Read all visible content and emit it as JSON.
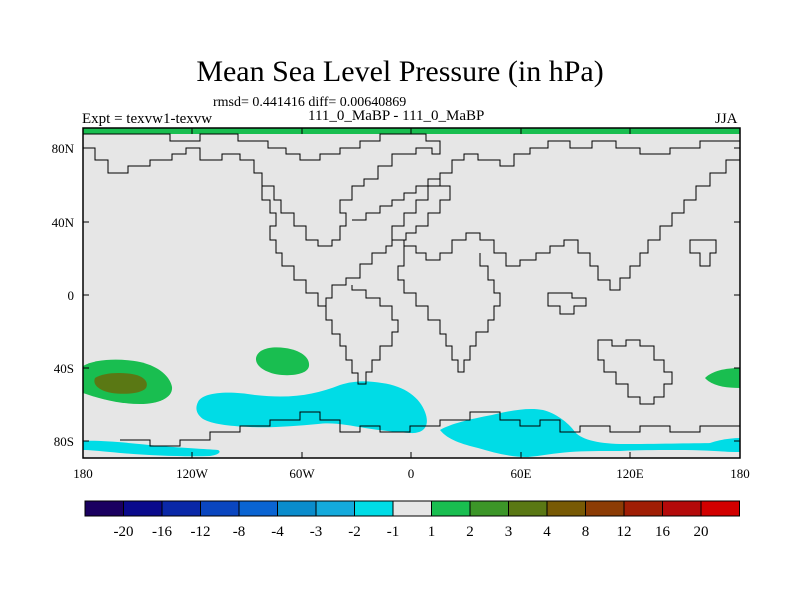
{
  "title": "Mean Sea Level Pressure (in hPa)",
  "stats": "rmsd= 0.441416 diff= 0.00640869",
  "left_label": "Expt = texvw1-texvw",
  "center_label": "111_0_MaBP - 111_0_MaBP",
  "right_label": "JJA",
  "lat_ticks": [
    "80N",
    "40N",
    "0",
    "40S",
    "80S"
  ],
  "lon_ticks": [
    "180",
    "120W",
    "60W",
    "0",
    "60E",
    "120E",
    "180"
  ],
  "colorbar": {
    "labels": [
      "-20",
      "-16",
      "-12",
      "-8",
      "-4",
      "-3",
      "-2",
      "-1",
      "1",
      "2",
      "3",
      "4",
      "8",
      "12",
      "16",
      "20"
    ],
    "colors": [
      "#1a0060",
      "#0a0a8c",
      "#0a28a8",
      "#0a46c0",
      "#0a64d2",
      "#0a8ccc",
      "#14aadc",
      "#00dce6",
      "#e6e6e6",
      "#19be50",
      "#3c9628",
      "#5a7814",
      "#785a05",
      "#8c3c05",
      "#a01e05",
      "#b40a0a",
      "#d20000"
    ]
  },
  "colors": {
    "neutral": "#e6e6e6",
    "negative_1": "#00dce6",
    "positive_1": "#19be50",
    "positive_2": "#3c9628",
    "positive_3": "#5a7814"
  }
}
